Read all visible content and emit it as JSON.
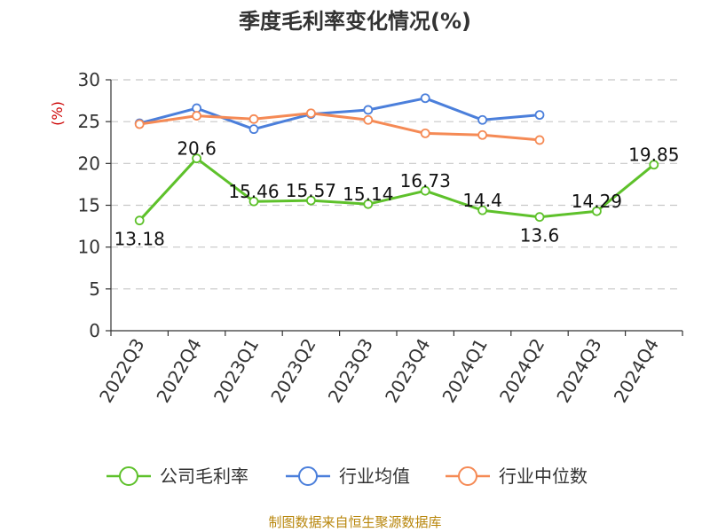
{
  "chart_data": {
    "type": "line",
    "title": "季度毛利率变化情况(%)",
    "ylabel": "(%)",
    "ylim": [
      0,
      30
    ],
    "yticks": [
      0,
      5,
      10,
      15,
      20,
      25,
      30
    ],
    "grid": true,
    "legend_position": "bottom",
    "categories": [
      "2022Q3",
      "2022Q4",
      "2023Q1",
      "2023Q2",
      "2023Q3",
      "2023Q4",
      "2024Q1",
      "2024Q2",
      "2024Q3",
      "2024Q4"
    ],
    "series": [
      {
        "name": "公司毛利率",
        "color": "#5ec12b",
        "values": [
          13.18,
          20.6,
          15.46,
          15.57,
          15.14,
          16.73,
          14.4,
          13.6,
          14.29,
          19.85
        ],
        "labels": [
          "13.18",
          "20.6",
          "15.46",
          "15.57",
          "15.14",
          "16.73",
          "14.4",
          "13.6",
          "14.29",
          "19.85"
        ]
      },
      {
        "name": "行业均值",
        "color": "#4b7fdb",
        "values": [
          24.8,
          26.6,
          24.1,
          25.9,
          26.4,
          27.8,
          25.2,
          25.8,
          null,
          null
        ]
      },
      {
        "name": "行业中位数",
        "color": "#f58a55",
        "values": [
          24.7,
          25.7,
          25.3,
          26.0,
          25.2,
          23.6,
          23.4,
          22.8,
          null,
          null
        ]
      }
    ]
  },
  "source": "制图数据来自恒生聚源数据库"
}
